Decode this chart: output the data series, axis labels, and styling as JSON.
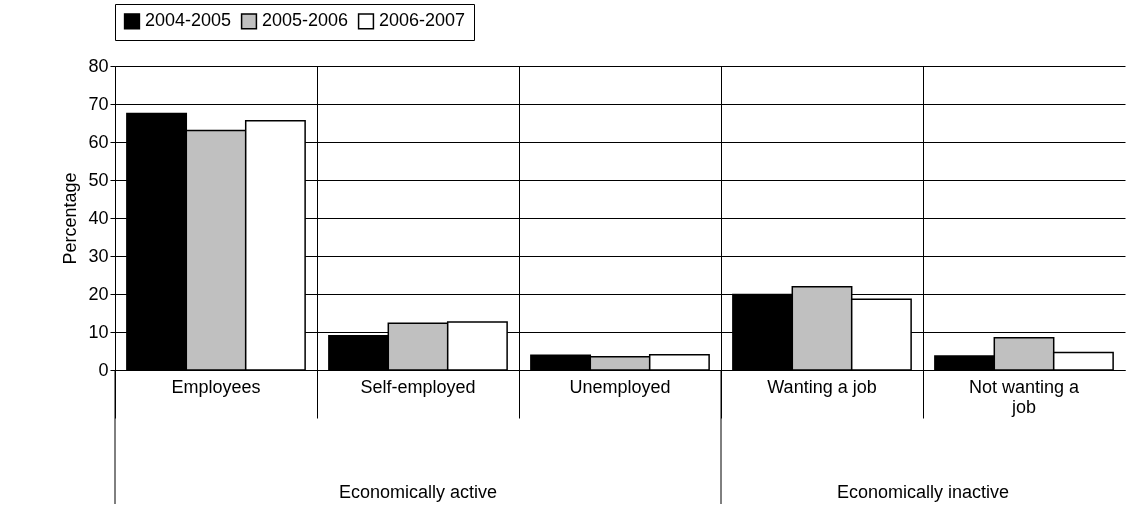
{
  "chart_data": {
    "type": "bar",
    "ylabel": "Percentage",
    "categories": [
      "Employees",
      "Self-employed",
      "Unemployed",
      "Wanting a job",
      "Not wanting a job"
    ],
    "series": [
      {
        "name": "2004-2005",
        "color": "#000000",
        "values": [
          67.5,
          9.0,
          3.9,
          19.9,
          3.7
        ]
      },
      {
        "name": "2005-2006",
        "color": "#c0c0c0",
        "values": [
          63.0,
          12.3,
          3.5,
          21.9,
          8.5
        ]
      },
      {
        "name": "2006-2007",
        "color": "#ffffff",
        "values": [
          65.6,
          12.6,
          4.0,
          18.6,
          4.6
        ]
      }
    ],
    "ylim": [
      0,
      80
    ],
    "yticks": [
      0,
      10,
      20,
      30,
      40,
      50,
      60,
      70,
      80
    ],
    "grid": true,
    "legend": "top",
    "annotations": [
      "Economically active",
      "Economically inactive"
    ]
  }
}
